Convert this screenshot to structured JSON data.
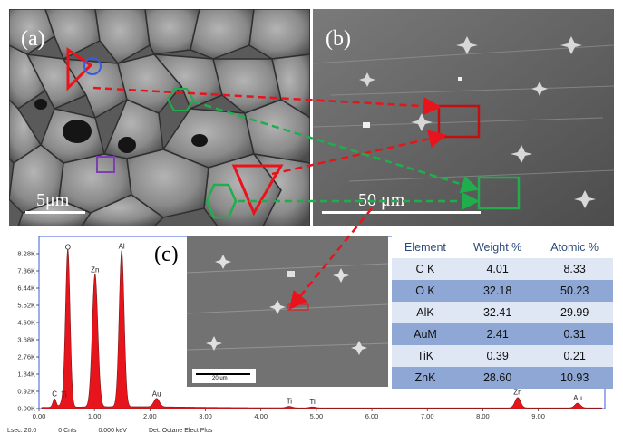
{
  "panels": {
    "a": {
      "label": "(a)",
      "scalebar": "5μm"
    },
    "b": {
      "label": "(b)",
      "scalebar": "50 μm"
    },
    "c": {
      "label": "(c)",
      "inset_scalebar": "20 um"
    }
  },
  "eds_table": {
    "headers": [
      "Element",
      "Weight %",
      "Atomic %"
    ],
    "rows": [
      [
        "C K",
        "4.01",
        "8.33"
      ],
      [
        "O K",
        "32.18",
        "50.23"
      ],
      [
        "AlK",
        "32.41",
        "29.99"
      ],
      [
        "AuM",
        "2.41",
        "0.31"
      ],
      [
        "TiK",
        "0.39",
        "0.21"
      ],
      [
        "ZnK",
        "28.60",
        "10.93"
      ]
    ]
  },
  "footer": {
    "lsec": "Lsec: 20.0",
    "cnts": "0 Cnts",
    "kev": "0.000 keV",
    "det": "Det: Octane Elect Plus"
  },
  "chart_data": {
    "type": "line",
    "title": "",
    "xlabel": "",
    "ylabel": "",
    "xlim": [
      0,
      10.2
    ],
    "ylim": [
      0,
      9.2
    ],
    "x_ticks": [
      "0.00",
      "1.00",
      "2.00",
      "3.00",
      "4.00",
      "5.00",
      "6.00",
      "7.00",
      "8.00",
      "9.00"
    ],
    "y_ticks": [
      "0.00K",
      "0.92K",
      "1.84K",
      "2.76K",
      "3.68K",
      "4.60K",
      "5.52K",
      "6.44K",
      "7.36K",
      "8.28K"
    ],
    "peaks": [
      {
        "label": "C",
        "x": 0.28,
        "y": 0.45
      },
      {
        "label": "Ti",
        "x": 0.45,
        "y": 0.4
      },
      {
        "label": "O",
        "x": 0.52,
        "y": 8.3
      },
      {
        "label": "Zn",
        "x": 1.01,
        "y": 7.1
      },
      {
        "label": "Al",
        "x": 1.49,
        "y": 8.35
      },
      {
        "label": "Au",
        "x": 2.12,
        "y": 0.45
      },
      {
        "label": "Ti",
        "x": 4.51,
        "y": 0.08
      },
      {
        "label": "Ti",
        "x": 4.93,
        "y": 0.05
      },
      {
        "label": "Zn",
        "x": 8.63,
        "y": 0.55
      },
      {
        "label": "Au",
        "x": 9.71,
        "y": 0.25
      }
    ],
    "colors": {
      "fill": "#e8141c",
      "line": "#7a1a1a",
      "frame": "#3b5bdb"
    }
  }
}
